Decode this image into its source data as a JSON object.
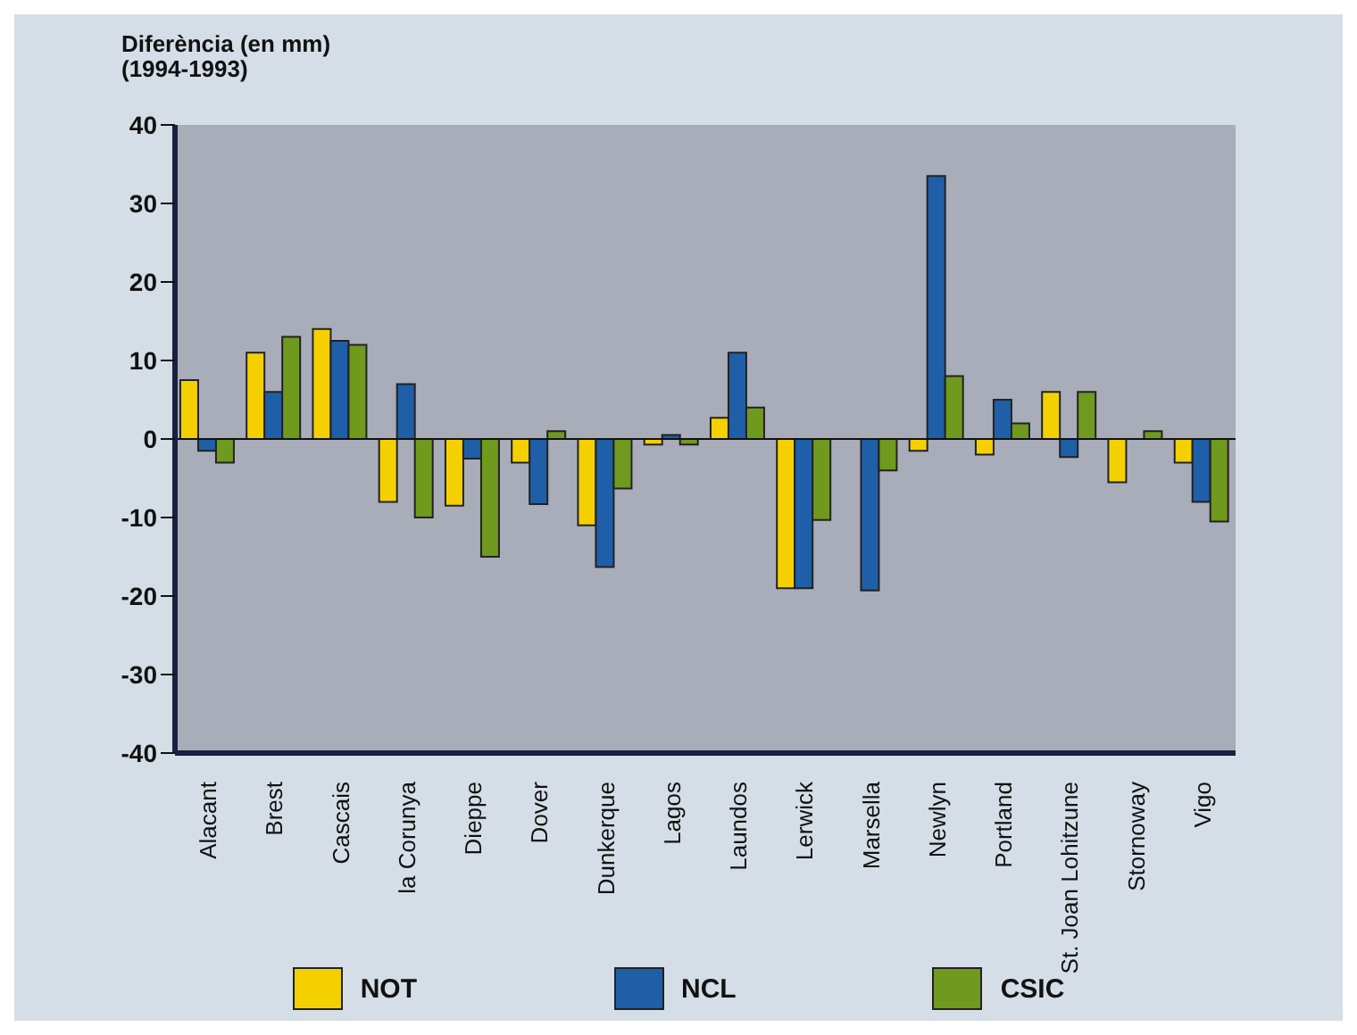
{
  "chart_data": {
    "type": "bar",
    "ylabel": "Diferència (en mm)\n(1994-1993)",
    "categories": [
      "Alacant",
      "Brest",
      "Cascais",
      "la Corunya",
      "Dieppe",
      "Dover",
      "Dunkerque",
      "Lagos",
      "Laundos",
      "Lerwick",
      "Marsella",
      "Newlyn",
      "Portland",
      "St. Joan Lohitzune",
      "Stornoway",
      "Vigo"
    ],
    "series": [
      {
        "name": "NOT",
        "color": "#f5d000",
        "values": [
          7.5,
          11,
          14,
          -8,
          -8.5,
          -3,
          -11,
          -0.7,
          2.7,
          -19,
          null,
          -1.5,
          -2,
          6,
          -5.5,
          -3
        ]
      },
      {
        "name": "NCL",
        "color": "#1e5fa8",
        "values": [
          -1.5,
          6,
          12.5,
          7,
          -2.5,
          -8.3,
          -16.3,
          0.5,
          11,
          -19,
          -19.3,
          33.5,
          5,
          -2.3,
          null,
          -8
        ]
      },
      {
        "name": "CSIC",
        "color": "#6f9a1e",
        "values": [
          -3,
          13,
          12,
          -10,
          -15,
          1,
          -6.3,
          -0.7,
          4,
          -10.3,
          -4,
          8,
          2,
          6,
          1,
          -10.5
        ]
      }
    ],
    "ylim": [
      -40,
      40
    ],
    "yticks": [
      -40,
      -30,
      -20,
      -10,
      0,
      10,
      20,
      30,
      40
    ],
    "legend": "bottom"
  }
}
